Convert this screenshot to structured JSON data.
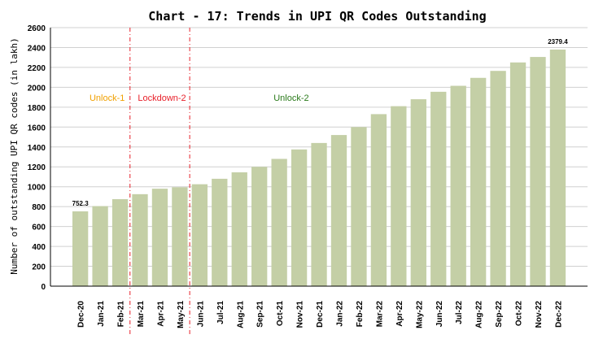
{
  "chart_data": {
    "type": "bar",
    "title": "Chart - 17: Trends in UPI QR Codes Outstanding",
    "ylabel": "Number of outstanding UPI QR codes (in lakh)",
    "xlabel": "",
    "ylim": [
      0,
      2600
    ],
    "yticks": [
      0,
      200,
      400,
      600,
      800,
      1000,
      1200,
      1400,
      1600,
      1800,
      2000,
      2200,
      2400,
      2600
    ],
    "grid": "horizontal",
    "bar_color": "#c4cfa6",
    "categories": [
      "Dec-20",
      "Jan-21",
      "Feb-21",
      "Mar-21",
      "Apr-21",
      "May-21",
      "Jun-21",
      "Jul-21",
      "Aug-21",
      "Sep-21",
      "Oct-21",
      "Nov-21",
      "Dec-21",
      "Jan-22",
      "Feb-22",
      "Mar-22",
      "Apr-22",
      "May-22",
      "Jun-22",
      "Jul-22",
      "Aug-22",
      "Sep-22",
      "Oct-22",
      "Nov-22",
      "Dec-22"
    ],
    "values": [
      752.3,
      805,
      875,
      925,
      980,
      995,
      1025,
      1080,
      1145,
      1200,
      1280,
      1375,
      1440,
      1520,
      1600,
      1730,
      1810,
      1880,
      1955,
      2015,
      2095,
      2165,
      2250,
      2305,
      2379.4
    ],
    "data_labels": [
      {
        "index": 0,
        "text": "752.3"
      },
      {
        "index": 24,
        "text": "2379.4"
      }
    ],
    "phase_lines": [
      {
        "between": [
          "Feb-21",
          "Mar-21"
        ],
        "color": "#e8202a"
      },
      {
        "between": [
          "May-21",
          "Jun-21"
        ],
        "color": "#e8202a"
      }
    ],
    "phase_labels": [
      {
        "text": "Unlock-1",
        "color": "#f0a000",
        "start": 0,
        "end": 3
      },
      {
        "text": "Lockdown-2",
        "color": "#e8202a",
        "start": 3,
        "end": 6
      },
      {
        "text": "Unlock-2",
        "color": "#2a7a1a",
        "start": 6,
        "end": 16
      }
    ]
  }
}
